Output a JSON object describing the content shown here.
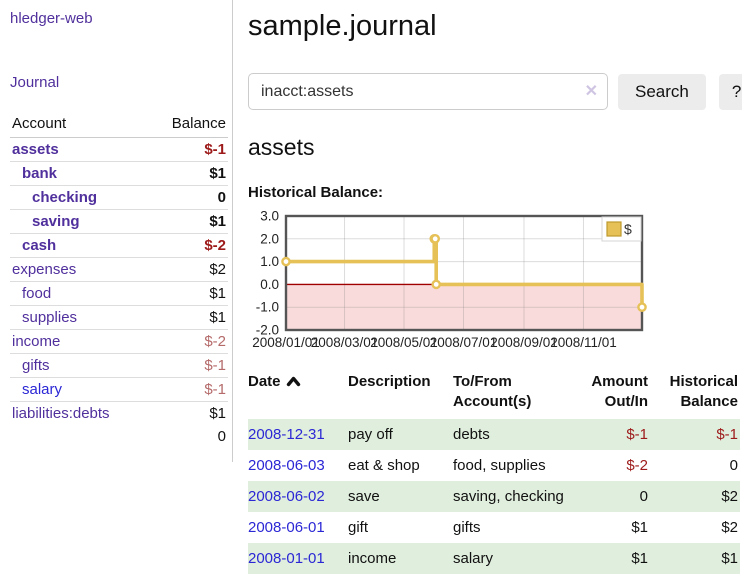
{
  "sidebar": {
    "brand": "hledger-web",
    "journal_label": "Journal",
    "accounts_table": {
      "headers": {
        "account": "Account",
        "balance": "Balance"
      },
      "rows": [
        {
          "name": "assets",
          "balance": "$-1",
          "level": 0,
          "bold": true,
          "neg": "strong"
        },
        {
          "name": "bank",
          "balance": "$1",
          "level": 1,
          "bold": true
        },
        {
          "name": "checking",
          "balance": "0",
          "level": 2,
          "bold": true
        },
        {
          "name": "saving",
          "balance": "$1",
          "level": 2,
          "bold": true
        },
        {
          "name": "cash",
          "balance": "$-2",
          "level": 1,
          "bold": true,
          "neg": "strong"
        },
        {
          "name": "expenses",
          "balance": "$2",
          "level": 0
        },
        {
          "name": "food",
          "balance": "$1",
          "level": 1
        },
        {
          "name": "supplies",
          "balance": "$1",
          "level": 1
        },
        {
          "name": "income",
          "balance": "$-2",
          "level": 0,
          "neg": "soft"
        },
        {
          "name": "gifts",
          "balance": "$-1",
          "level": 1,
          "neg": "soft"
        },
        {
          "name": "salary",
          "balance": "$-1",
          "level": 1,
          "neg": "soft",
          "link": "unvisited"
        },
        {
          "name": "liabilities:debts",
          "balance": "$1",
          "level": 0
        }
      ],
      "total": "0"
    }
  },
  "header": {
    "title": "sample.journal"
  },
  "search": {
    "query": "inacct:assets",
    "clear_icon": "✕",
    "search_label": "Search",
    "help_label": "?"
  },
  "account_page": {
    "heading": "assets",
    "chart_label": "Historical Balance:"
  },
  "chart_data": {
    "type": "line",
    "step": "after",
    "title": "Historical Balance",
    "series": [
      {
        "name": "$",
        "x": [
          "2008-01-01",
          "2008-06-01",
          "2008-06-02",
          "2008-06-03",
          "2008-12-31"
        ],
        "values": [
          1,
          2,
          2,
          0,
          -1
        ]
      }
    ],
    "xdomain": [
      "2008-01-01",
      "2008-12-31"
    ],
    "ylim": [
      -2,
      3
    ],
    "yticks": [
      "3.0",
      "2.0",
      "1.0",
      "0.0",
      "-1.0",
      "-2.0"
    ],
    "xticks": [
      "2008/01/01",
      "2008/03/01",
      "2008/05/01",
      "2008/07/01",
      "2008/09/01",
      "2008/11/01"
    ],
    "grid": true,
    "legend": {
      "label": "$",
      "position": "top-right"
    },
    "colors": {
      "line": "#e6c157",
      "line_dark": "#bf9b2f",
      "marker_fill": "#ffffff",
      "negative_region": "#fadbdb",
      "zero_line": "#a00000",
      "plot_border": "#555555",
      "gridline": "#d9d9d9"
    }
  },
  "register_table": {
    "headers": [
      {
        "lines": [
          "Date"
        ],
        "align": "left",
        "sorted_asc": true
      },
      {
        "lines": [
          "Description"
        ],
        "align": "left"
      },
      {
        "lines": [
          "To/From",
          "Account(s)"
        ],
        "align": "left"
      },
      {
        "lines": [
          "Amount",
          "Out/In"
        ],
        "align": "right"
      },
      {
        "lines": [
          "Historical",
          "Balance"
        ],
        "align": "right"
      }
    ],
    "rows": [
      {
        "date": "2008-12-31",
        "description": "pay off",
        "accounts": "debts",
        "amount": "$-1",
        "amount_negative": true,
        "balance": "$-1",
        "balance_negative": true
      },
      {
        "date": "2008-06-03",
        "description": "eat & shop",
        "accounts": "food, supplies",
        "amount": "$-2",
        "amount_negative": true,
        "balance": "0",
        "balance_negative": false
      },
      {
        "date": "2008-06-02",
        "description": "save",
        "accounts": "saving, checking",
        "amount": "0",
        "amount_negative": false,
        "balance": "$2",
        "balance_negative": false
      },
      {
        "date": "2008-06-01",
        "description": "gift",
        "accounts": "gifts",
        "amount": "$1",
        "amount_negative": false,
        "balance": "$2",
        "balance_negative": false
      },
      {
        "date": "2008-01-01",
        "description": "income",
        "accounts": "salary",
        "amount": "$1",
        "amount_negative": false,
        "balance": "$1",
        "balance_negative": false
      }
    ]
  },
  "colors": {
    "link_purple": "#50309c",
    "link_blue": "#2b27d5",
    "negative_strong": "#9d1a1a",
    "negative_soft": "#b56a6a",
    "row_stripe_green": "#e0eedd",
    "button_bg": "#ececec"
  }
}
